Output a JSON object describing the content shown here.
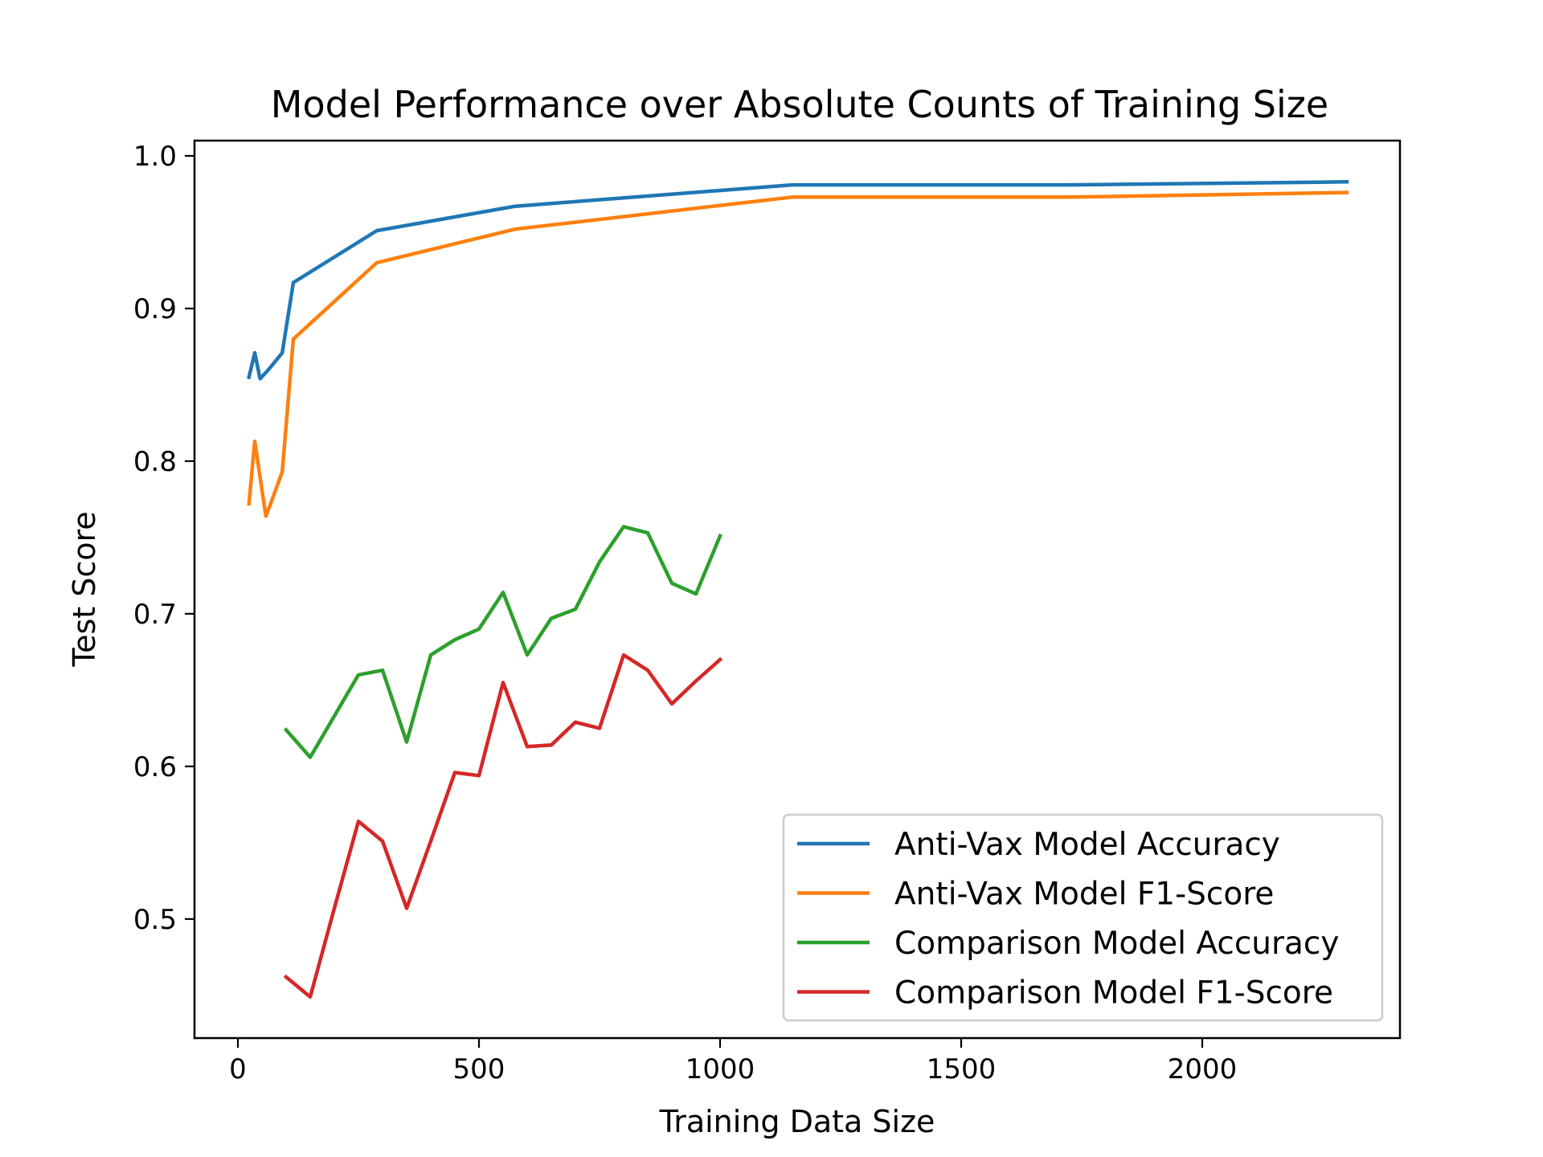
{
  "chart_data": {
    "type": "line",
    "title": "Model Performance over Absolute Counts of Training Size",
    "xlabel": "Training Data Size",
    "ylabel": "Test Score",
    "xlim": [
      -90,
      2410
    ],
    "ylim": [
      0.422,
      1.01
    ],
    "xticks": [
      0,
      500,
      1000,
      1500,
      2000
    ],
    "yticks": [
      0.5,
      0.6,
      0.7,
      0.8,
      0.9,
      1.0
    ],
    "xtick_labels": [
      "0",
      "500",
      "1000",
      "1500",
      "2000"
    ],
    "ytick_labels": [
      "0.5",
      "0.6",
      "0.7",
      "0.8",
      "0.9",
      "1.0"
    ],
    "grid": false,
    "legend_position": "lower-right",
    "series": [
      {
        "name": "Anti-Vax Model Accuracy",
        "color": "#1f77b4",
        "x": [
          23,
          35,
          46,
          58,
          69,
          92,
          115,
          288,
          575,
          1150,
          1725,
          2300
        ],
        "y": [
          0.855,
          0.871,
          0.854,
          0.858,
          0.862,
          0.871,
          0.917,
          0.951,
          0.967,
          0.981,
          0.981,
          0.983
        ]
      },
      {
        "name": "Anti-Vax Model F1-Score",
        "color": "#ff7f0e",
        "x": [
          23,
          35,
          58,
          69,
          92,
          115,
          288,
          575,
          1150,
          1725,
          2300
        ],
        "y": [
          0.772,
          0.813,
          0.764,
          0.773,
          0.793,
          0.88,
          0.93,
          0.952,
          0.973,
          0.973,
          0.976
        ]
      },
      {
        "name": "Comparison Model Accuracy",
        "color": "#2ca02c",
        "x": [
          100,
          150,
          200,
          250,
          300,
          350,
          400,
          450,
          500,
          550,
          600,
          650,
          700,
          750,
          800,
          850,
          900,
          950,
          1000
        ],
        "y": [
          0.624,
          0.606,
          0.633,
          0.66,
          0.663,
          0.616,
          0.673,
          0.683,
          0.69,
          0.714,
          0.673,
          0.697,
          0.703,
          0.734,
          0.757,
          0.753,
          0.72,
          0.713,
          0.751
        ]
      },
      {
        "name": "Comparison Model F1-Score",
        "color": "#d62728",
        "x": [
          100,
          150,
          200,
          250,
          300,
          350,
          400,
          450,
          500,
          550,
          600,
          650,
          700,
          750,
          800,
          850,
          900,
          950,
          1000
        ],
        "y": [
          0.462,
          0.449,
          0.507,
          0.564,
          0.551,
          0.507,
          0.551,
          0.596,
          0.594,
          0.655,
          0.613,
          0.614,
          0.629,
          0.625,
          0.673,
          0.663,
          0.641,
          0.656,
          0.67
        ]
      }
    ]
  }
}
